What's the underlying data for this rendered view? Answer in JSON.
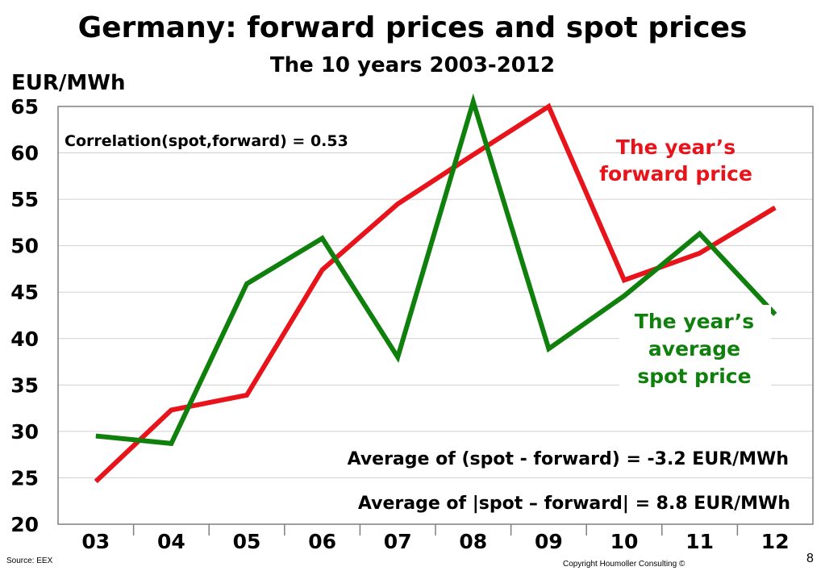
{
  "slide": {
    "title": "Germany: forward prices and spot prices",
    "subtitle": "The 10 years 2003-2012",
    "unit": "EUR/MWh",
    "source": "Source: EEX",
    "copyright": "Copyright Houmoller Consulting ©",
    "page_number": "8"
  },
  "chart_data": {
    "type": "line",
    "categories": [
      "03",
      "04",
      "05",
      "06",
      "07",
      "08",
      "09",
      "10",
      "11",
      "12"
    ],
    "ylim": [
      20,
      65
    ],
    "yticks": [
      20,
      25,
      30,
      35,
      40,
      45,
      50,
      55,
      60,
      65
    ],
    "grid": true,
    "series": [
      {
        "key": "forward",
        "color": "#e8141b",
        "values": [
          24.6,
          32.3,
          33.9,
          47.4,
          54.5,
          59.8,
          65.0,
          46.3,
          49.2,
          54.1
        ]
      },
      {
        "key": "spot",
        "color": "#10800d",
        "values": [
          29.5,
          28.7,
          45.9,
          50.8,
          38.0,
          65.5,
          38.9,
          44.6,
          51.3,
          42.6
        ]
      }
    ],
    "annotations": {
      "correlation": "Correlation(spot,forward)  =  0.53",
      "forward_label": [
        "The year’s",
        "forward price"
      ],
      "spot_label": [
        "The year’s",
        "average",
        "spot price"
      ],
      "avg_diff": "Average of  (spot - forward)   =   -3.2 EUR/MWh",
      "avg_abs_diff": "Average of  |spot – forward|   =   8.8 EUR/MWh"
    }
  }
}
